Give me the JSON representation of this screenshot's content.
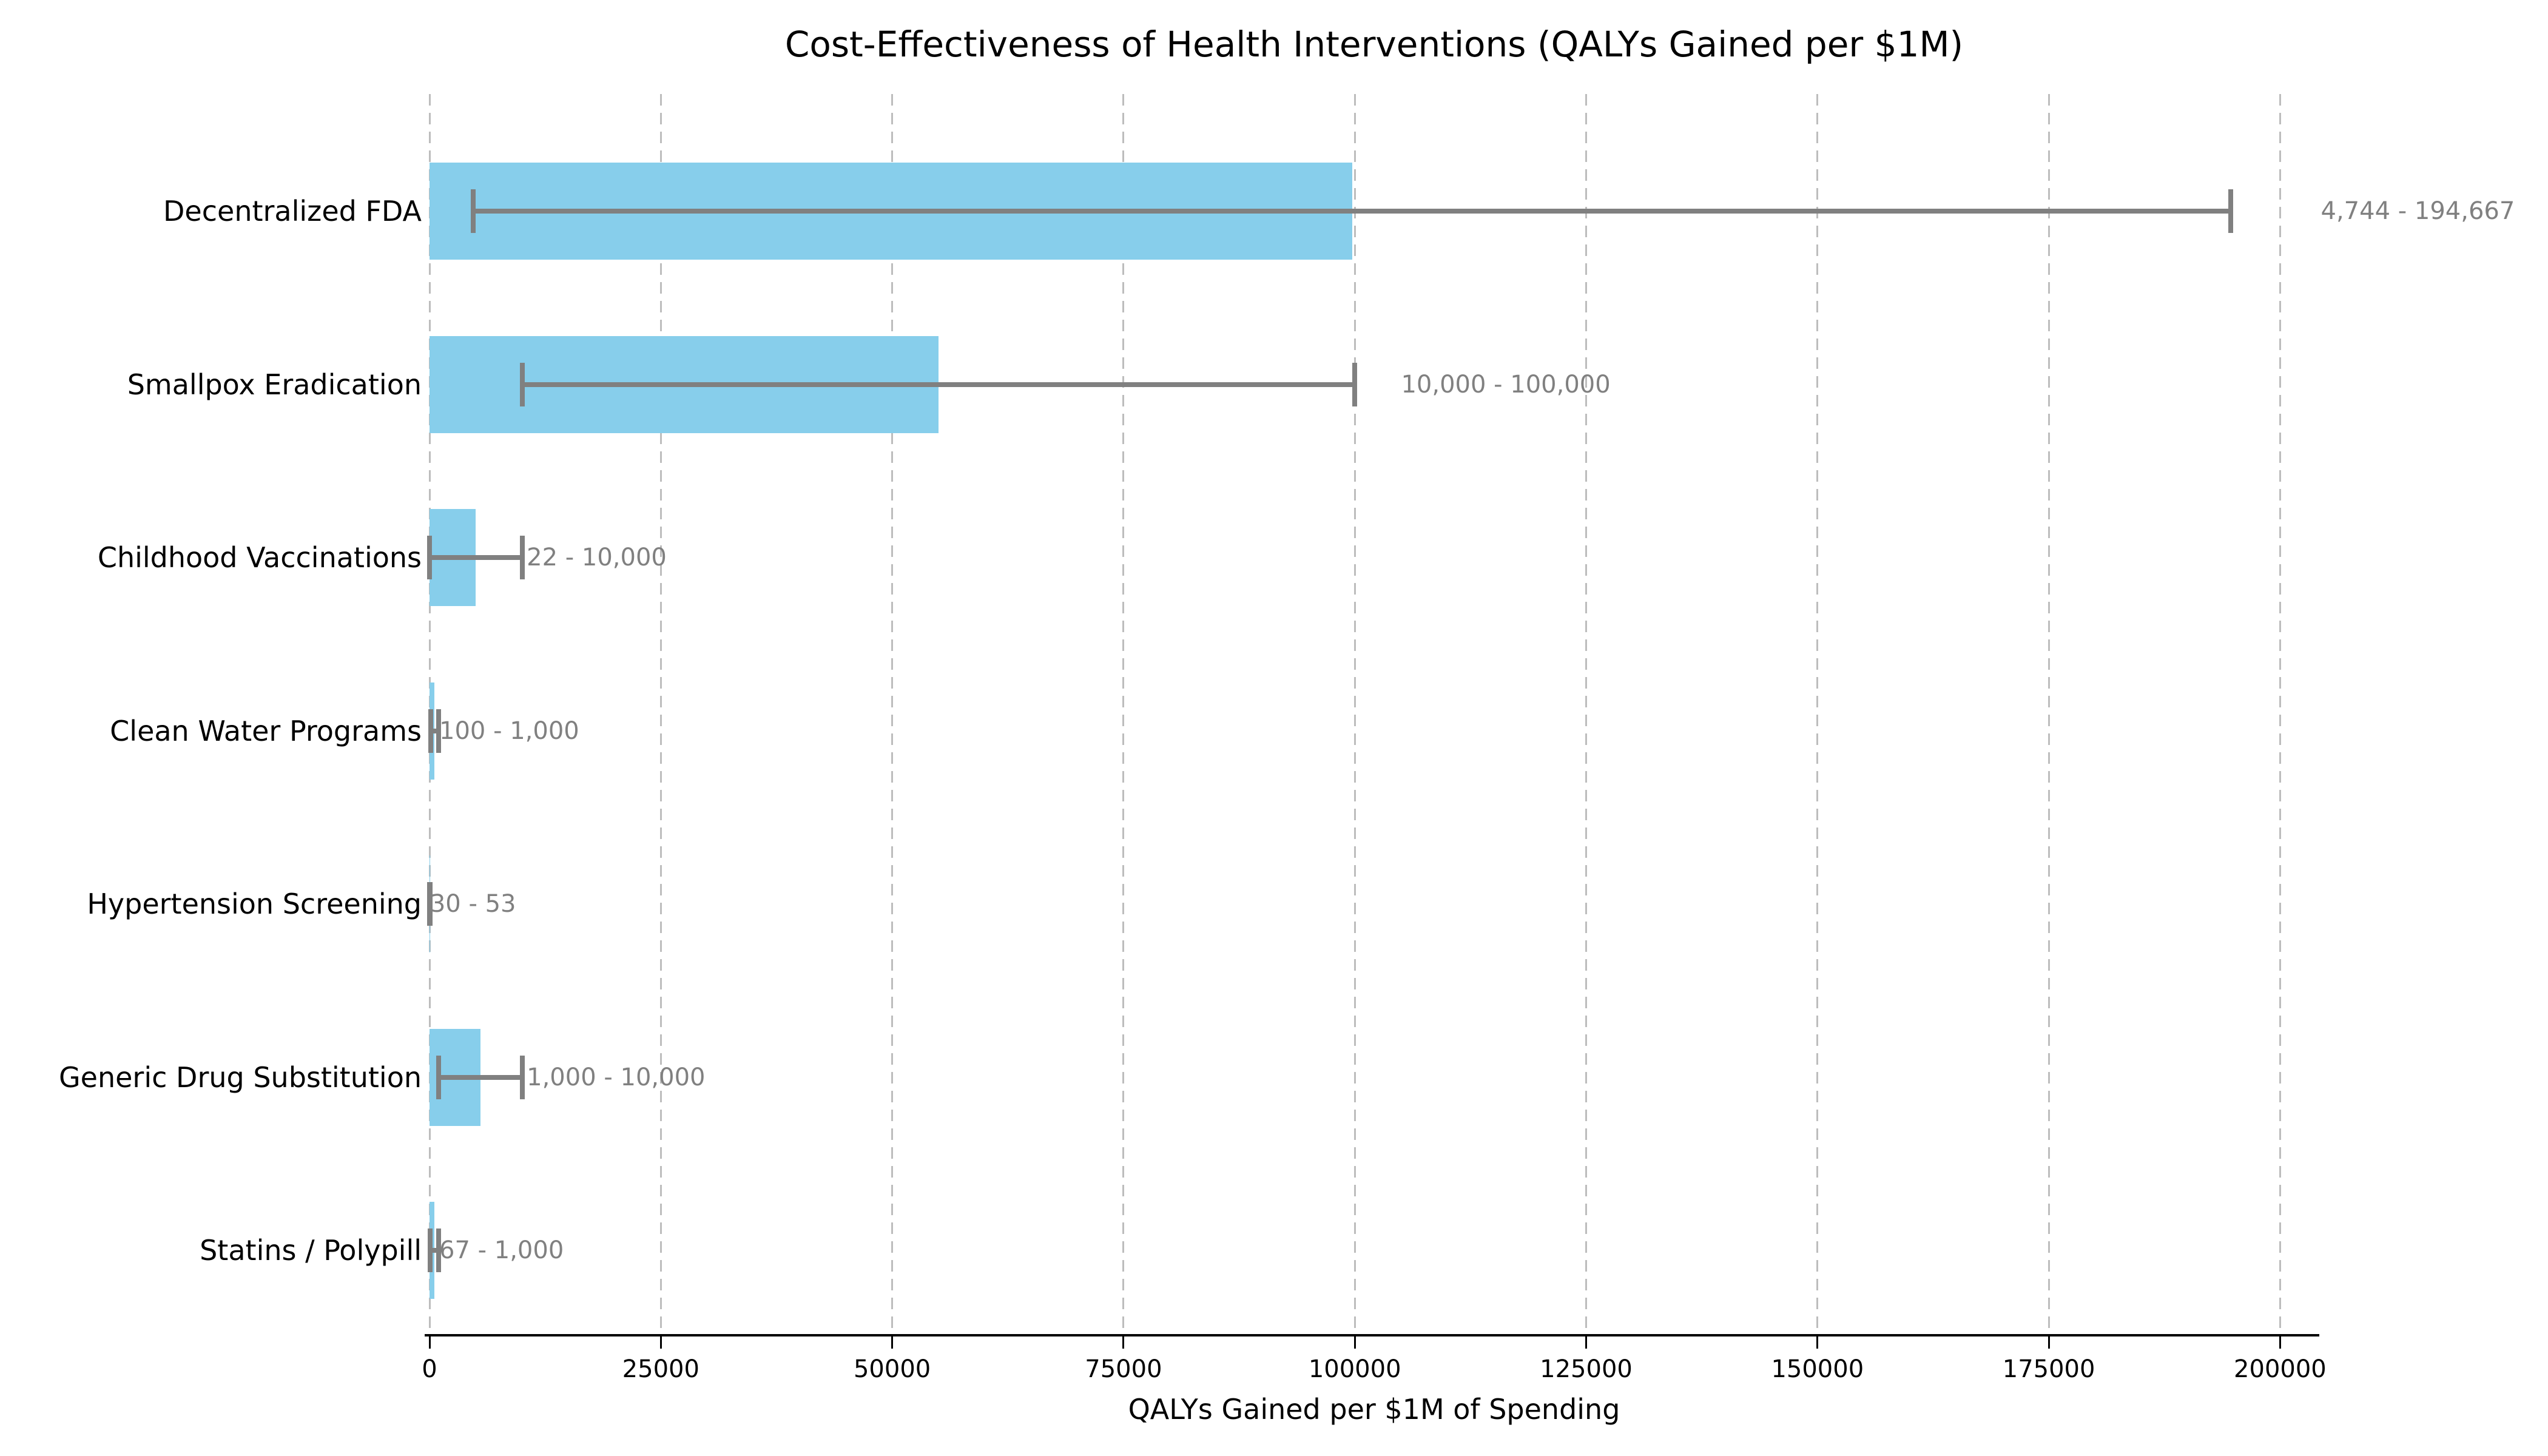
{
  "chart_data": {
    "type": "bar",
    "orientation": "horizontal",
    "title": "Cost-Effectiveness of Health Interventions (QALYs Gained per $1M)",
    "xlabel": "QALYs Gained per $1M of Spending",
    "categories": [
      "Decentralized FDA",
      "Smallpox Eradication",
      "Childhood Vaccinations",
      "Clean Water Programs",
      "Hypertension Screening",
      "Generic Drug Substitution",
      "Statins / Polypill"
    ],
    "values": [
      99705.5,
      55000,
      5011,
      550,
      41.5,
      5500,
      533.5
    ],
    "ranges": [
      [
        4744,
        194667
      ],
      [
        10000,
        100000
      ],
      [
        22,
        10000
      ],
      [
        100,
        1000
      ],
      [
        30,
        53
      ],
      [
        1000,
        10000
      ],
      [
        67,
        1000
      ]
    ],
    "range_labels": [
      "4,744 - 194,667",
      "10,000 - 100,000",
      "22 - 10,000",
      "100 - 1,000",
      "30 - 53",
      "1,000 - 10,000",
      "67 - 1,000"
    ],
    "x_ticks": [
      0,
      25000,
      50000,
      75000,
      100000,
      125000,
      150000,
      175000,
      200000
    ],
    "x_tick_labels": [
      "0",
      "25000",
      "50000",
      "75000",
      "100000",
      "125000",
      "150000",
      "175000",
      "200000"
    ],
    "xlim": [
      0,
      204400
    ],
    "grid": "vertical-dashed",
    "legend": "none",
    "bar_color": "#87CEEB",
    "error_color": "#808080",
    "annotation_color": "#808080"
  }
}
